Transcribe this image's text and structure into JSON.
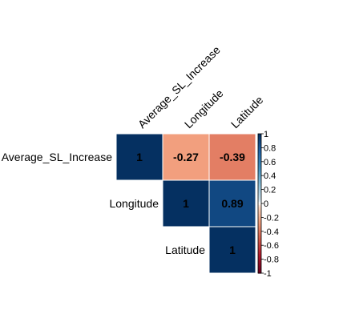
{
  "chart_data": {
    "type": "heatmap",
    "matrix_shape": "upper-triangle",
    "variables": [
      "Average_SL_Increase",
      "Longitude",
      "Latitude"
    ],
    "cells": [
      {
        "row": 0,
        "col": 0,
        "value": 1,
        "label": "1"
      },
      {
        "row": 0,
        "col": 1,
        "value": -0.27,
        "label": "-0.27"
      },
      {
        "row": 0,
        "col": 2,
        "value": -0.39,
        "label": "-0.39"
      },
      {
        "row": 1,
        "col": 1,
        "value": 1,
        "label": "1"
      },
      {
        "row": 1,
        "col": 2,
        "value": 0.89,
        "label": "0.89"
      },
      {
        "row": 2,
        "col": 2,
        "value": 1,
        "label": "1"
      }
    ],
    "colorbar": {
      "range": [
        -1,
        1
      ],
      "tick_values": [
        1,
        0.8,
        0.6,
        0.4,
        0.2,
        0,
        -0.2,
        -0.4,
        -0.6,
        -0.8,
        -1
      ],
      "tick_labels": [
        "1",
        "0.8",
        "0.6",
        "0.4",
        "0.2",
        "0",
        "-0.2",
        "-0.4",
        "-0.6",
        "-0.8",
        "-1"
      ]
    },
    "colors": {
      "positive_strong": "#053061",
      "negative_strong": "#67001F",
      "neutral": "#FFFFFF"
    },
    "title": ""
  }
}
